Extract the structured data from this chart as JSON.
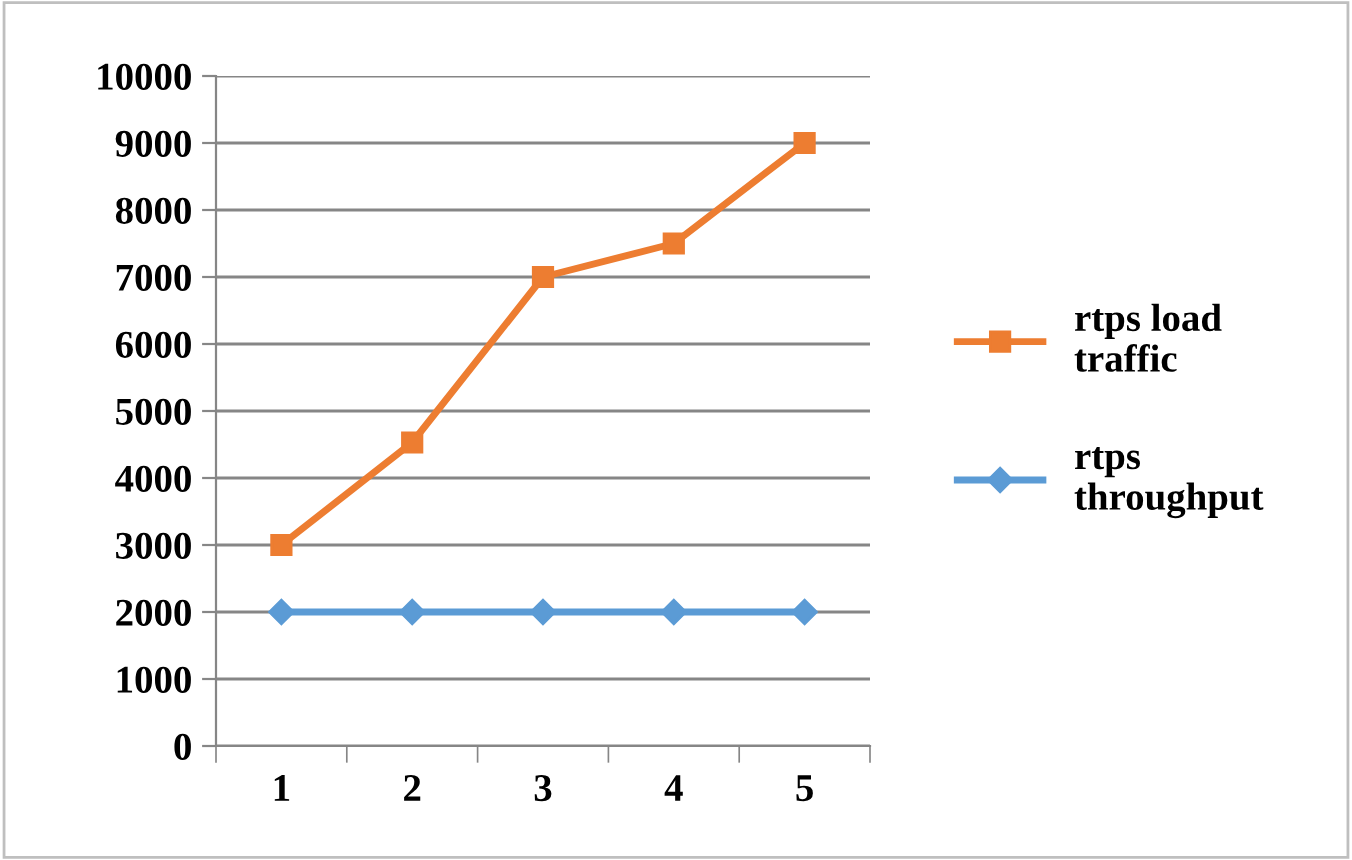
{
  "chart_data": {
    "type": "line",
    "categories": [
      "1",
      "2",
      "3",
      "4",
      "5"
    ],
    "series": [
      {
        "name": "rtps load traffic",
        "color": "#ed7d31",
        "marker": "square",
        "values": [
          3000,
          4530,
          7000,
          7500,
          9000
        ]
      },
      {
        "name": "rtps throughput",
        "color": "#5b9bd5",
        "marker": "diamond",
        "values": [
          2000,
          2000,
          2000,
          2000,
          2000
        ]
      }
    ],
    "ylim": [
      0,
      10000
    ],
    "yticks": [
      0,
      1000,
      2000,
      3000,
      4000,
      5000,
      6000,
      7000,
      8000,
      9000,
      10000
    ],
    "grid": "y",
    "legend": "right",
    "line_style": "solid"
  }
}
